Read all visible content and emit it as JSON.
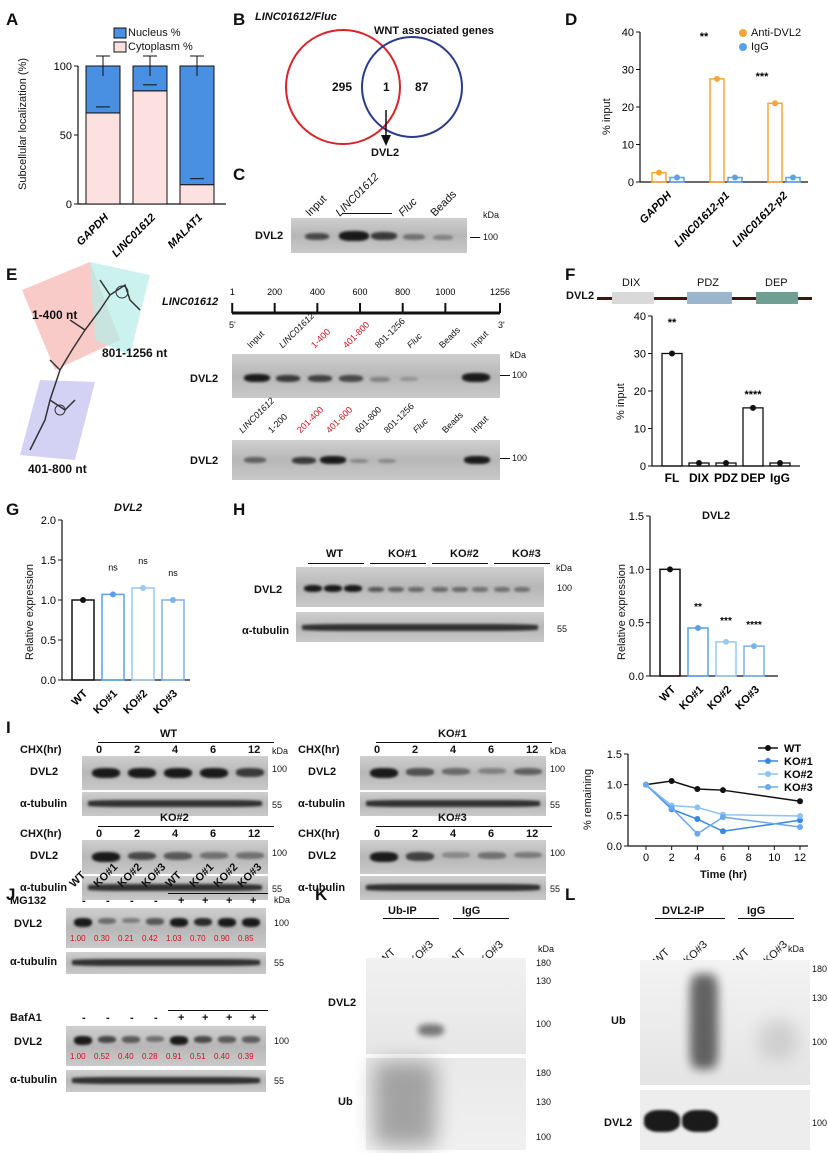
{
  "panels": {
    "A": "A",
    "B": "B",
    "C": "C",
    "D": "D",
    "E": "E",
    "F": "F",
    "G": "G",
    "H": "H",
    "I": "I",
    "J": "J",
    "K": "K",
    "L": "L"
  },
  "A": {
    "ylabel": "Subcellular localization (%)",
    "legend_nucleus": "Nucleus %",
    "legend_cytoplasm": "Cytoplasm %",
    "categories": [
      "GAPDH",
      "LINC01612",
      "MALAT1"
    ],
    "yticks": [
      "0",
      "50",
      "100"
    ]
  },
  "B": {
    "set1": "LINC01612/Fluc",
    "set2": "WNT associated genes",
    "only1": "295",
    "both": "1",
    "only2": "87",
    "result": "DVL2"
  },
  "C": {
    "lanes": [
      "Input",
      "LINC01612",
      "Fluc",
      "Beads"
    ],
    "row": "DVL2",
    "kda": "kDa",
    "marker": "100"
  },
  "D": {
    "ylabel": "% input",
    "legend": [
      "Anti-DVL2",
      "IgG"
    ],
    "categories": [
      "GAPDH",
      "LINC01612-p1",
      "LINC01612-p2"
    ],
    "yticks": [
      "0",
      "10",
      "20",
      "30",
      "40"
    ],
    "sig": [
      "**",
      "***"
    ]
  },
  "E": {
    "region1": "1-400 nt",
    "region2": "801-1256 nt",
    "region3": "401-800 nt",
    "gene": "LINC01612",
    "ruler": [
      "1",
      "200",
      "400",
      "600",
      "800",
      "1000",
      "1256"
    ],
    "end5": "5'",
    "end3": "3'",
    "lanes_top": [
      "Input",
      "LINC01612",
      "1-400",
      "401-800",
      "801-1256",
      "Fluc",
      "Beads",
      "Input"
    ],
    "lanes_bottom": [
      "LINC01612",
      "1-200",
      "201-400",
      "401-600",
      "601-800",
      "801-1256",
      "Fluc",
      "Beads",
      "Input"
    ],
    "row": "DVL2",
    "kda": "kDa",
    "marker": "100"
  },
  "F": {
    "protein": "DVL2",
    "domains": [
      "DIX",
      "PDZ",
      "DEP"
    ],
    "ylabel": "% input",
    "categories": [
      "FL",
      "DIX",
      "PDZ",
      "DEP",
      "IgG"
    ],
    "yticks": [
      "0",
      "10",
      "20",
      "30",
      "40"
    ],
    "sig": [
      "**",
      "****"
    ]
  },
  "G": {
    "title": "DVL2",
    "ylabel": "Relative expression",
    "categories": [
      "WT",
      "KO#1",
      "KO#2",
      "KO#3"
    ],
    "yticks": [
      "0.0",
      "0.5",
      "1.0",
      "1.5",
      "2.0"
    ],
    "sig": [
      "ns",
      "ns",
      "ns"
    ]
  },
  "H": {
    "groups": [
      "WT",
      "KO#1",
      "KO#2",
      "KO#3"
    ],
    "rows": [
      "DVL2",
      "α-tubulin"
    ],
    "kda": "kDa",
    "markers": [
      "100",
      "55"
    ],
    "chart_title": "DVL2",
    "ylabel": "Relative expression",
    "categories": [
      "WT",
      "KO#1",
      "KO#2",
      "KO#3"
    ],
    "yticks": [
      "0.0",
      "0.5",
      "1.0",
      "1.5"
    ],
    "sig": [
      "**",
      "***",
      "****"
    ]
  },
  "I": {
    "blots": [
      "WT",
      "KO#1",
      "KO#2",
      "KO#3"
    ],
    "chx": "CHX(hr)",
    "times": [
      "0",
      "2",
      "4",
      "6",
      "12"
    ],
    "rows": [
      "DVL2",
      "α-tubulin"
    ],
    "kda": "kDa",
    "markers": [
      "100",
      "55"
    ],
    "xlabel": "Time (hr)",
    "ylabel": "% remaining",
    "xticks": [
      "0",
      "2",
      "4",
      "6",
      "8",
      "10",
      "12"
    ],
    "yticks": [
      "0.0",
      "0.5",
      "1.0",
      "1.5"
    ]
  },
  "J": {
    "lanes": [
      "WT",
      "KO#1",
      "KO#2",
      "KO#3",
      "WT",
      "KO#1",
      "KO#2",
      "KO#3"
    ],
    "mg132": "MG132",
    "bafa1": "BafA1",
    "minus": "-",
    "plus": "+",
    "rows": [
      "DVL2",
      "α-tubulin"
    ],
    "kda": "kDa",
    "markers": [
      "100",
      "55"
    ],
    "quant_mg132": [
      "1.00",
      "0.30",
      "0.21",
      "0.42",
      "1.03",
      "0.70",
      "0.90",
      "0.85"
    ],
    "quant_bafa1": [
      "1.00",
      "0.52",
      "0.40",
      "0.28",
      "0.91",
      "0.51",
      "0.40",
      "0.39"
    ]
  },
  "K": {
    "groups": [
      "Ub-IP",
      "IgG"
    ],
    "lanes": [
      "WT",
      "KO#3",
      "WT",
      "KO#3"
    ],
    "rows": [
      "DVL2",
      "Ub"
    ],
    "kda": "kDa",
    "markers": [
      "180",
      "130",
      "100"
    ]
  },
  "L": {
    "groups": [
      "DVL2-IP",
      "IgG"
    ],
    "lanes": [
      "WT",
      "KO#3",
      "WT",
      "KO#3"
    ],
    "rows": [
      "Ub",
      "DVL2"
    ],
    "kda": "kDa",
    "markers": [
      "180",
      "130",
      "100"
    ]
  },
  "chart_data": [
    {
      "type": "bar",
      "panel": "A",
      "categories": [
        "GAPDH",
        "LINC01612",
        "MALAT1"
      ],
      "series": [
        {
          "name": "Cytoplasm %",
          "values": [
            66,
            82,
            14
          ],
          "color": "#fde0e0"
        },
        {
          "name": "Nucleus %",
          "values": [
            34,
            18,
            86
          ],
          "color": "#4a90e2"
        }
      ],
      "ylim": [
        0,
        110
      ],
      "ylabel": "Subcellular localization (%)",
      "stacked": true
    },
    {
      "type": "bar",
      "panel": "D",
      "categories": [
        "GAPDH",
        "LINC01612-p1",
        "LINC01612-p2"
      ],
      "series": [
        {
          "name": "Anti-DVL2",
          "values": [
            2.5,
            27.5,
            21
          ],
          "color": "#f6a53a"
        },
        {
          "name": "IgG",
          "values": [
            1.2,
            1.2,
            1.2
          ],
          "color": "#5aa0ea"
        }
      ],
      "ylim": [
        0,
        40
      ],
      "ylabel": "% input"
    },
    {
      "type": "bar",
      "panel": "F",
      "categories": [
        "FL",
        "DIX",
        "PDZ",
        "DEP",
        "IgG"
      ],
      "values": [
        30,
        0.8,
        0.8,
        15.5,
        0.8
      ],
      "ylim": [
        0,
        40
      ],
      "ylabel": "% input"
    },
    {
      "type": "bar",
      "panel": "G",
      "categories": [
        "WT",
        "KO#1",
        "KO#2",
        "KO#3"
      ],
      "values": [
        1.0,
        1.07,
        1.15,
        1.0
      ],
      "ylim": [
        0,
        2
      ],
      "ylabel": "Relative expression"
    },
    {
      "type": "bar",
      "panel": "H",
      "categories": [
        "WT",
        "KO#1",
        "KO#2",
        "KO#3"
      ],
      "values": [
        1.0,
        0.45,
        0.32,
        0.28
      ],
      "ylim": [
        0,
        1.5
      ],
      "ylabel": "Relative expression"
    },
    {
      "type": "line",
      "panel": "I",
      "x": [
        0,
        2,
        4,
        6,
        12
      ],
      "series": [
        {
          "name": "WT",
          "values": [
            1.0,
            1.06,
            0.93,
            0.91,
            0.73
          ],
          "color": "#111111"
        },
        {
          "name": "KO#1",
          "values": [
            1.0,
            0.6,
            0.44,
            0.24,
            0.42
          ],
          "color": "#3a86e0"
        },
        {
          "name": "KO#2",
          "values": [
            1.0,
            0.66,
            0.63,
            0.51,
            0.49
          ],
          "color": "#8cc3f5"
        },
        {
          "name": "KO#3",
          "values": [
            1.0,
            0.62,
            0.2,
            0.47,
            0.31
          ],
          "color": "#6ba8ec"
        }
      ],
      "xlim": [
        0,
        12
      ],
      "ylim": [
        0,
        1.5
      ],
      "xlabel": "Time (hr)",
      "ylabel": "% remaining"
    }
  ]
}
